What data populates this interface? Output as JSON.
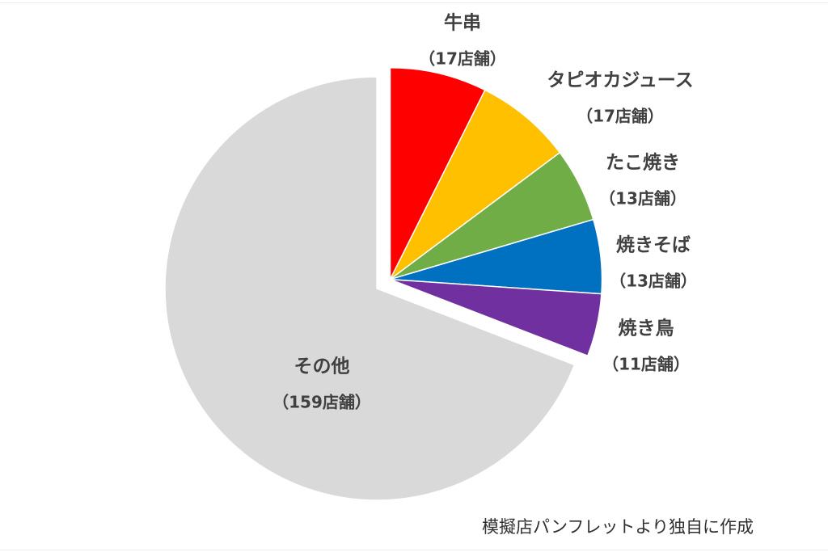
{
  "chart_data": {
    "type": "pie",
    "title": "",
    "slices": [
      {
        "label": "牛串",
        "count_text": "（17店舗）",
        "value": 17,
        "color": "#ff0000",
        "exploded": true
      },
      {
        "label": "タピオカジュース",
        "count_text": "（17店舗）",
        "value": 17,
        "color": "#ffc000",
        "exploded": true
      },
      {
        "label": "たこ焼き",
        "count_text": "（13店舗）",
        "value": 13,
        "color": "#70ad47",
        "exploded": true
      },
      {
        "label": "焼きそば",
        "count_text": "（13店舗）",
        "value": 13,
        "color": "#0070c0",
        "exploded": true
      },
      {
        "label": "焼き鳥",
        "count_text": "（11店舗）",
        "value": 11,
        "color": "#7030a0",
        "exploded": true
      },
      {
        "label": "その他",
        "count_text": "（159店舗）",
        "value": 159,
        "color": "#d9d9d9",
        "exploded": false
      }
    ],
    "source_note": "模擬店パンフレットより独自に作成"
  }
}
